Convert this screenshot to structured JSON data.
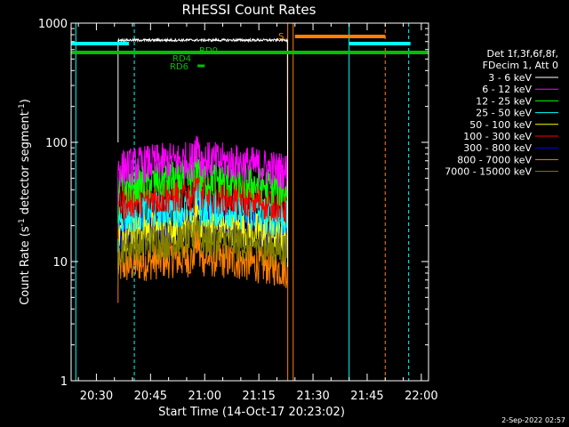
{
  "chart_data": {
    "type": "line",
    "title": "RHESSI Count Rates",
    "xlabel": "Start Time (14-Oct-17 20:23:02)",
    "ylabel_main": "Count Rate (s",
    "ylabel_sup1": "-1",
    "ylabel_mid": " detector segment",
    "ylabel_sup2": "-1",
    "ylabel_end": ")",
    "y_scale": "log",
    "ylim": [
      1,
      1000
    ],
    "xlim": [
      "20:23",
      "22:02"
    ],
    "x_ticks": [
      "20:30",
      "20:45",
      "21:00",
      "21:15",
      "21:30",
      "21:45",
      "22:00"
    ],
    "y_ticks": [
      "1",
      "10",
      "100",
      "1000"
    ],
    "legend_position": "right",
    "legend_header": [
      "Det 1f,3f,6f,8f,",
      "FDecim 1, Att 0"
    ],
    "series": [
      {
        "name": "3 - 6 keV",
        "color": "#ffffff",
        "level": 720,
        "start": "20:36",
        "end": "21:23"
      },
      {
        "name": "6 - 12 keV",
        "color": "#ff00ff",
        "level": 60,
        "start": "20:36",
        "end": "21:23"
      },
      {
        "name": "12 - 25 keV",
        "color": "#00ff00",
        "level": 42,
        "start": "20:36",
        "end": "21:23"
      },
      {
        "name": "25 - 50 keV",
        "color": "#00ffff",
        "level": 24,
        "start": "20:36",
        "end": "21:23"
      },
      {
        "name": "50 - 100 keV",
        "color": "#ffff00",
        "level": 17,
        "start": "20:36",
        "end": "21:23"
      },
      {
        "name": "100 - 300 keV",
        "color": "#ff0000",
        "level": 31,
        "start": "20:36",
        "end": "21:23"
      },
      {
        "name": "300 - 800 keV",
        "color": "#0000ff",
        "level": 18,
        "start": "20:36",
        "end": "21:23"
      },
      {
        "name": "800 - 7000 keV",
        "color": "#ff8000",
        "level": 9,
        "start": "20:36",
        "end": "21:23"
      },
      {
        "name": "7000 - 15000 keV",
        "color": "#808000",
        "level": 13,
        "start": "20:36",
        "end": "21:23"
      }
    ],
    "flags": [
      {
        "label": "RD0",
        "color": "#00c000"
      },
      {
        "label": "RD4",
        "color": "#00c000"
      },
      {
        "label": "RD6",
        "color": "#00c000"
      },
      {
        "label": "S",
        "color": "#ff8000"
      }
    ],
    "timestamp": "2-Sep-2022 02:57"
  }
}
